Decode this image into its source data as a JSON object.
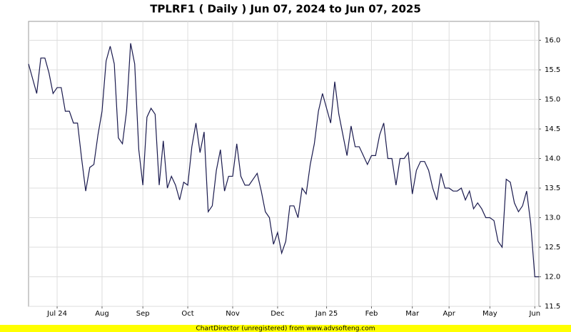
{
  "chart_data": {
    "type": "line",
    "title": "TPLRF1 ( Daily ) Jun 07, 2024 to Jun 07, 2025",
    "categories": [
      null,
      null,
      null,
      null,
      null,
      null,
      null,
      "Jul 24",
      null,
      null,
      null,
      null,
      null,
      null,
      null,
      null,
      null,
      null,
      "Aug",
      null,
      null,
      null,
      null,
      null,
      null,
      null,
      null,
      null,
      "Sep",
      null,
      null,
      null,
      null,
      null,
      null,
      null,
      null,
      null,
      null,
      "Oct",
      null,
      null,
      null,
      null,
      null,
      null,
      null,
      null,
      null,
      null,
      "Nov",
      null,
      null,
      null,
      null,
      null,
      null,
      null,
      null,
      null,
      null,
      "Dec",
      null,
      null,
      null,
      null,
      null,
      null,
      null,
      null,
      null,
      null,
      null,
      "Jan 25",
      null,
      null,
      null,
      null,
      null,
      null,
      null,
      null,
      null,
      null,
      "Feb",
      null,
      null,
      null,
      null,
      null,
      null,
      null,
      null,
      null,
      "Mar",
      null,
      null,
      null,
      null,
      null,
      null,
      null,
      null,
      "Apr",
      null,
      null,
      null,
      null,
      null,
      null,
      null,
      null,
      null,
      "May",
      null,
      null,
      null,
      null,
      null,
      null,
      null,
      null,
      null,
      null,
      "Jun",
      null
    ],
    "series": [
      {
        "name": "TPLRF1",
        "color": "#1a1a4e",
        "values": [
          15.6,
          15.35,
          15.1,
          15.7,
          15.7,
          15.45,
          15.1,
          15.2,
          15.2,
          14.8,
          14.8,
          14.6,
          14.6,
          14.0,
          13.45,
          13.85,
          13.9,
          14.4,
          14.8,
          15.65,
          15.9,
          15.6,
          14.35,
          14.25,
          14.8,
          15.95,
          15.6,
          14.15,
          13.55,
          14.7,
          14.85,
          14.75,
          13.55,
          14.3,
          13.5,
          13.7,
          13.55,
          13.3,
          13.6,
          13.55,
          14.2,
          14.6,
          14.1,
          14.45,
          13.1,
          13.2,
          13.8,
          14.15,
          13.45,
          13.7,
          13.7,
          14.25,
          13.7,
          13.55,
          13.55,
          13.65,
          13.75,
          13.45,
          13.1,
          13.0,
          12.55,
          12.75,
          12.4,
          12.6,
          13.2,
          13.2,
          13.0,
          13.5,
          13.4,
          13.9,
          14.25,
          14.8,
          15.1,
          14.85,
          14.6,
          15.3,
          14.75,
          14.4,
          14.05,
          14.55,
          14.2,
          14.2,
          14.05,
          13.9,
          14.05,
          14.05,
          14.4,
          14.6,
          14.0,
          14.0,
          13.55,
          14.0,
          14.0,
          14.1,
          13.4,
          13.8,
          13.95,
          13.95,
          13.8,
          13.5,
          13.3,
          13.75,
          13.5,
          13.5,
          13.45,
          13.45,
          13.5,
          13.3,
          13.45,
          13.15,
          13.25,
          13.15,
          13.0,
          13.0,
          12.95,
          12.6,
          12.5,
          13.65,
          13.6,
          13.25,
          13.1,
          13.2,
          13.45,
          12.9,
          12.0,
          12.0
        ]
      }
    ],
    "ylim": [
      11.5,
      16.32
    ],
    "yticks": [
      11.5,
      {
        "value": 12,
        "label": "12.0"
      },
      12.5,
      {
        "value": 13,
        "label": "13.0"
      },
      13.5,
      {
        "value": 14,
        "label": "14.0"
      },
      14.5,
      {
        "value": 15,
        "label": "15.0"
      },
      15.5,
      {
        "value": 16,
        "label": "16.0"
      }
    ],
    "grid": true,
    "footer": "ChartDirector (unregistered) from www.advsofteng.com"
  }
}
